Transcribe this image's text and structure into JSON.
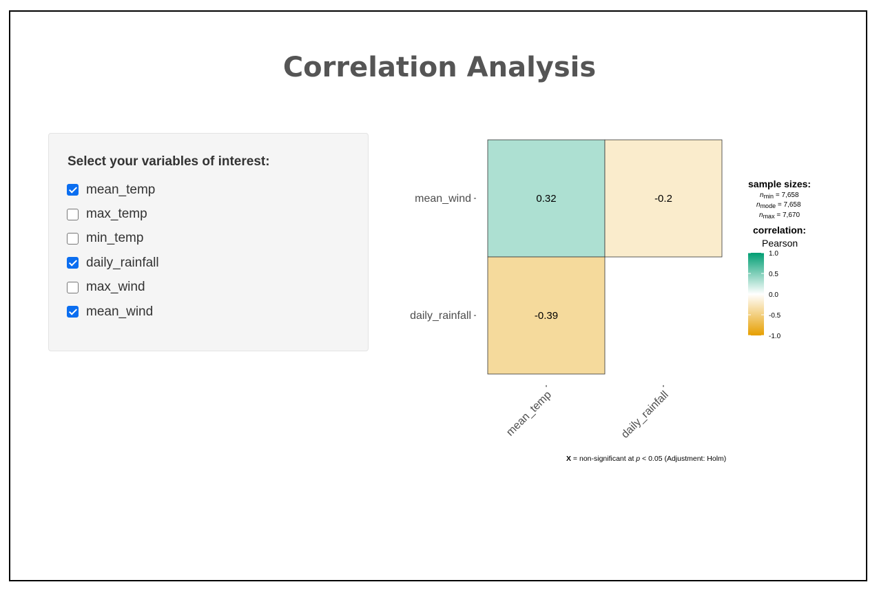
{
  "page": {
    "title": "Correlation Analysis"
  },
  "panel": {
    "label": "Select your variables of interest:",
    "options": [
      {
        "label": "mean_temp",
        "checked": true
      },
      {
        "label": "max_temp",
        "checked": false
      },
      {
        "label": "min_temp",
        "checked": false
      },
      {
        "label": "daily_rainfall",
        "checked": true
      },
      {
        "label": "max_wind",
        "checked": false
      },
      {
        "label": "mean_wind",
        "checked": true
      }
    ]
  },
  "chart_data": {
    "type": "heatmap",
    "rows": [
      "mean_wind",
      "daily_rainfall"
    ],
    "columns": [
      "mean_temp",
      "daily_rainfall"
    ],
    "cells": [
      {
        "row": "mean_wind",
        "column": "mean_temp",
        "value": 0.32,
        "label": "0.32"
      },
      {
        "row": "mean_wind",
        "column": "daily_rainfall",
        "value": -0.2,
        "label": "-0.2"
      },
      {
        "row": "daily_rainfall",
        "column": "mean_temp",
        "value": -0.39,
        "label": "-0.39"
      }
    ],
    "legend": {
      "sample_sizes_title": "sample sizes:",
      "n_min": "7,658",
      "n_mode": "7,658",
      "n_max": "7,670",
      "correlation_title": "correlation:",
      "method": "Pearson",
      "range": [
        -1.0,
        1.0
      ],
      "ticks": [
        "1.0",
        "0.5",
        "0.0",
        "-0.5",
        "-1.0"
      ],
      "colors": {
        "high": "#009e73",
        "mid": "#ffffff",
        "low": "#e69f00"
      }
    },
    "footnote": {
      "marker": "X",
      "text_before": " = non-significant at ",
      "p": "p",
      "text_after": " < 0.05 (Adjustment: Holm)"
    }
  }
}
